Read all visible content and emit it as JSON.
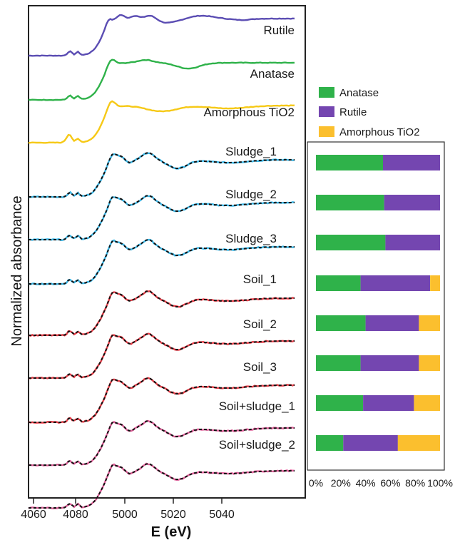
{
  "chart_data": [
    {
      "type": "line",
      "xlabel": "E (eV)",
      "ylabel": "Normalized absorbance",
      "xlim": [
        4058,
        5060
      ],
      "x_ticks": [
        "4060",
        "4080",
        "5000",
        "5020",
        "5040"
      ],
      "series": [
        {
          "name": "Rutile",
          "color": "#5b4db3",
          "fit": false
        },
        {
          "name": "Anatase",
          "color": "#2fb24a",
          "fit": false
        },
        {
          "name": "Amorphous TiO2",
          "color": "#f6c917",
          "fit": false
        },
        {
          "name": "Sludge_1",
          "color": "#3cb8e8",
          "fit": true
        },
        {
          "name": "Sludge_2",
          "color": "#3cb8e8",
          "fit": true
        },
        {
          "name": "Sludge_3",
          "color": "#3cb8e8",
          "fit": true
        },
        {
          "name": "Soil_1",
          "color": "#e8404a",
          "fit": true
        },
        {
          "name": "Soil_2",
          "color": "#e8404a",
          "fit": true
        },
        {
          "name": "Soil_3",
          "color": "#e8404a",
          "fit": true
        },
        {
          "name": "Soil+sludge_1",
          "color": "#e0609a",
          "fit": true
        },
        {
          "name": "Soil+sludge_2",
          "color": "#e0609a",
          "fit": true
        }
      ]
    },
    {
      "type": "bar",
      "orientation": "horizontal",
      "stacked": true,
      "categories": [
        "Sludge_1",
        "Sludge_2",
        "Sludge_3",
        "Soil_1",
        "Soil_2",
        "Soil_3",
        "Soil+sludge_1",
        "Soil+sludge_2"
      ],
      "series": [
        {
          "name": "Anatase",
          "color": "#2fb24a",
          "values": [
            54,
            55,
            56,
            36,
            40,
            36,
            38,
            22
          ]
        },
        {
          "name": "Rutile",
          "color": "#7446b0",
          "values": [
            46,
            45,
            44,
            56,
            43,
            47,
            41,
            44
          ]
        },
        {
          "name": "Amorphous TiO2",
          "color": "#fbbf2e",
          "values": [
            0,
            0,
            0,
            8,
            17,
            17,
            21,
            34
          ]
        }
      ],
      "xlim": [
        0,
        100
      ],
      "x_ticks": [
        "0%",
        "20%",
        "40%",
        "60%",
        "80%",
        "100%"
      ],
      "legend": "top"
    }
  ]
}
